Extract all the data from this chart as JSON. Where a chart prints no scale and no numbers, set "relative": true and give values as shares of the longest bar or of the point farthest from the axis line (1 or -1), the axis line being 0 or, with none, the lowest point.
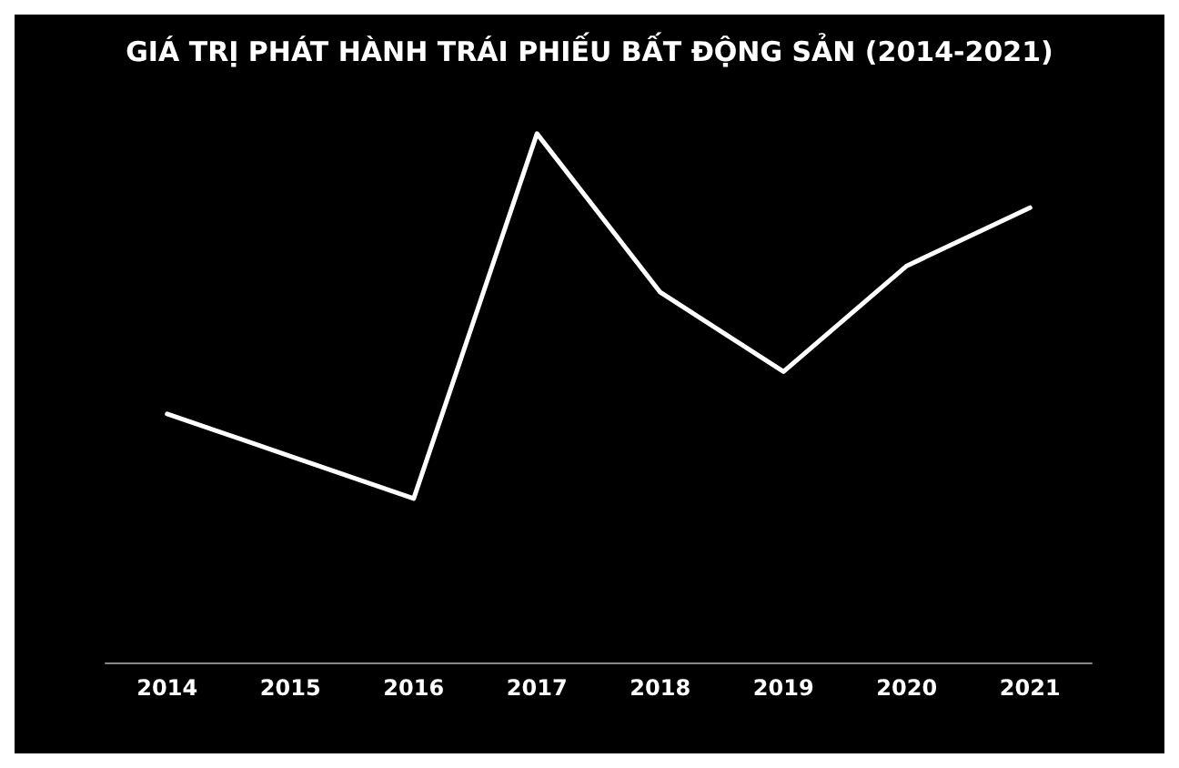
{
  "chart_data": {
    "type": "line",
    "title": "GIÁ TRỊ PHÁT HÀNH TRÁI PHIẾU BẤT ĐỘNG SẢN (2014-2021)",
    "categories": [
      "2014",
      "2015",
      "2016",
      "2017",
      "2018",
      "2019",
      "2020",
      "2021"
    ],
    "relative": true,
    "series": [
      {
        "color": "#ffffff",
        "values": [
          0.47,
          0.39,
          0.31,
          1,
          0.7,
          0.55,
          0.75,
          0.86
        ]
      }
    ],
    "grid": false,
    "marker": "none",
    "line_style": "solid"
  }
}
